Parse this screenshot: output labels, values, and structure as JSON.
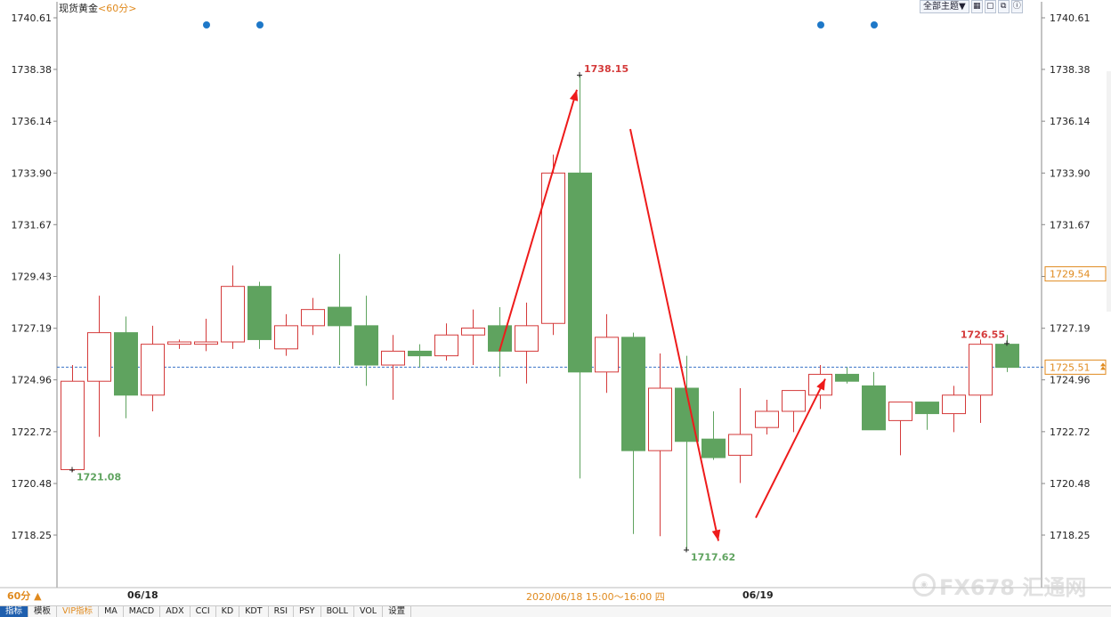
{
  "title": {
    "name": "现货黄金",
    "period": "<60分>"
  },
  "toolbar": {
    "theme_label": "全部主题▼",
    "icons": [
      "grid-icon",
      "window-icon",
      "restore-icon",
      "info-icon"
    ]
  },
  "colors": {
    "up": "#d43a3a",
    "down": "#5fa35f",
    "axis": "#222222",
    "grid": "#d8d8d8",
    "current_price_line": "#3a73c8",
    "annotation_arrow": "#ee1b1b",
    "marker_dot": "#1e78c8",
    "highlight": "#e08a1e"
  },
  "chart_data": {
    "type": "candlestick",
    "ylim": [
      1716.8,
      1740.61
    ],
    "y_ticks": [
      "1740.61",
      "1738.38",
      "1736.14",
      "1733.90",
      "1731.67",
      "1729.43",
      "1727.19",
      "1724.96",
      "1722.72",
      "1720.48",
      "1718.25"
    ],
    "x_labels": [
      {
        "index": 3,
        "text": "06/18"
      },
      {
        "index": 26,
        "text": "06/19"
      }
    ],
    "candles": [
      {
        "o": 1721.08,
        "h": 1725.6,
        "l": 1721.0,
        "c": 1724.9
      },
      {
        "o": 1724.9,
        "h": 1728.6,
        "l": 1722.5,
        "c": 1727.0
      },
      {
        "o": 1727.0,
        "h": 1727.7,
        "l": 1723.3,
        "c": 1724.3
      },
      {
        "o": 1724.3,
        "h": 1727.3,
        "l": 1723.6,
        "c": 1726.5
      },
      {
        "o": 1726.5,
        "h": 1726.7,
        "l": 1726.3,
        "c": 1726.6
      },
      {
        "o": 1726.5,
        "h": 1727.6,
        "l": 1726.2,
        "c": 1726.6
      },
      {
        "o": 1726.6,
        "h": 1729.9,
        "l": 1726.3,
        "c": 1729.0
      },
      {
        "o": 1729.0,
        "h": 1729.2,
        "l": 1726.3,
        "c": 1726.7
      },
      {
        "o": 1726.3,
        "h": 1727.8,
        "l": 1726.0,
        "c": 1727.3
      },
      {
        "o": 1727.3,
        "h": 1728.5,
        "l": 1726.9,
        "c": 1728.0
      },
      {
        "o": 1728.1,
        "h": 1730.4,
        "l": 1725.6,
        "c": 1727.3
      },
      {
        "o": 1727.3,
        "h": 1728.6,
        "l": 1724.7,
        "c": 1725.6
      },
      {
        "o": 1725.6,
        "h": 1726.9,
        "l": 1724.1,
        "c": 1726.2
      },
      {
        "o": 1726.2,
        "h": 1726.5,
        "l": 1725.5,
        "c": 1726.0
      },
      {
        "o": 1726.0,
        "h": 1727.4,
        "l": 1725.8,
        "c": 1726.9
      },
      {
        "o": 1726.9,
        "h": 1728.0,
        "l": 1725.6,
        "c": 1727.2
      },
      {
        "o": 1727.3,
        "h": 1728.1,
        "l": 1725.1,
        "c": 1726.2
      },
      {
        "o": 1726.2,
        "h": 1728.3,
        "l": 1724.8,
        "c": 1727.3
      },
      {
        "o": 1727.4,
        "h": 1734.7,
        "l": 1726.9,
        "c": 1733.9
      },
      {
        "o": 1733.9,
        "h": 1738.15,
        "l": 1720.7,
        "c": 1725.3
      },
      {
        "o": 1725.3,
        "h": 1727.8,
        "l": 1724.4,
        "c": 1726.8
      },
      {
        "o": 1726.8,
        "h": 1727.0,
        "l": 1718.3,
        "c": 1721.9
      },
      {
        "o": 1721.9,
        "h": 1726.1,
        "l": 1718.2,
        "c": 1724.6
      },
      {
        "o": 1724.6,
        "h": 1726.0,
        "l": 1717.62,
        "c": 1722.3
      },
      {
        "o": 1722.4,
        "h": 1723.6,
        "l": 1721.5,
        "c": 1721.6
      },
      {
        "o": 1721.7,
        "h": 1724.6,
        "l": 1720.5,
        "c": 1722.6
      },
      {
        "o": 1722.9,
        "h": 1724.1,
        "l": 1722.6,
        "c": 1723.6
      },
      {
        "o": 1723.6,
        "h": 1724.5,
        "l": 1722.7,
        "c": 1724.5
      },
      {
        "o": 1724.3,
        "h": 1725.6,
        "l": 1723.7,
        "c": 1725.2
      },
      {
        "o": 1725.2,
        "h": 1725.5,
        "l": 1724.8,
        "c": 1724.9
      },
      {
        "o": 1724.7,
        "h": 1725.3,
        "l": 1722.8,
        "c": 1722.8
      },
      {
        "o": 1723.2,
        "h": 1723.9,
        "l": 1721.7,
        "c": 1724.0
      },
      {
        "o": 1724.0,
        "h": 1724.0,
        "l": 1722.8,
        "c": 1723.5
      },
      {
        "o": 1723.5,
        "h": 1724.7,
        "l": 1722.7,
        "c": 1724.3
      },
      {
        "o": 1724.3,
        "h": 1726.7,
        "l": 1723.1,
        "c": 1726.5
      },
      {
        "o": 1726.5,
        "h": 1726.9,
        "l": 1725.3,
        "c": 1725.5
      }
    ],
    "current_price": 1725.51,
    "crosshair_price": 1729.54,
    "labels": [
      {
        "text": "1721.08",
        "index": 0,
        "price": 1721.08,
        "color": "#5fa35f",
        "pos": "below"
      },
      {
        "text": "1738.15",
        "index": 19,
        "price": 1738.15,
        "color": "#d43a3a",
        "pos": "above"
      },
      {
        "text": "1717.62",
        "index": 23,
        "price": 1717.62,
        "color": "#5fa35f",
        "pos": "below"
      },
      {
        "text": "1726.55",
        "index": 35,
        "price": 1726.55,
        "color": "#d43a3a",
        "pos": "above"
      }
    ],
    "arrows": [
      {
        "from": [
          16.0,
          1726.2
        ],
        "to": [
          18.9,
          1737.5
        ]
      },
      {
        "from": [
          20.9,
          1735.8
        ],
        "to": [
          24.2,
          1718.0
        ]
      },
      {
        "from": [
          25.6,
          1719.0
        ],
        "to": [
          28.2,
          1725.0
        ]
      }
    ],
    "marker_dots": [
      5,
      7,
      28,
      30
    ]
  },
  "bottom": {
    "period_selector": "60分 ▲",
    "date_left": "06/18",
    "date_right": "06/19",
    "cursor_time": "2020/06/18 15:00～16:00 四"
  },
  "watermark": {
    "text": "FX678 汇通网"
  },
  "tabs": [
    "指标",
    "模板",
    "VIP指标",
    "MA",
    "MACD",
    "ADX",
    "CCI",
    "KD",
    "KDT",
    "RSI",
    "PSY",
    "BOLL",
    "VOL",
    "设置"
  ]
}
